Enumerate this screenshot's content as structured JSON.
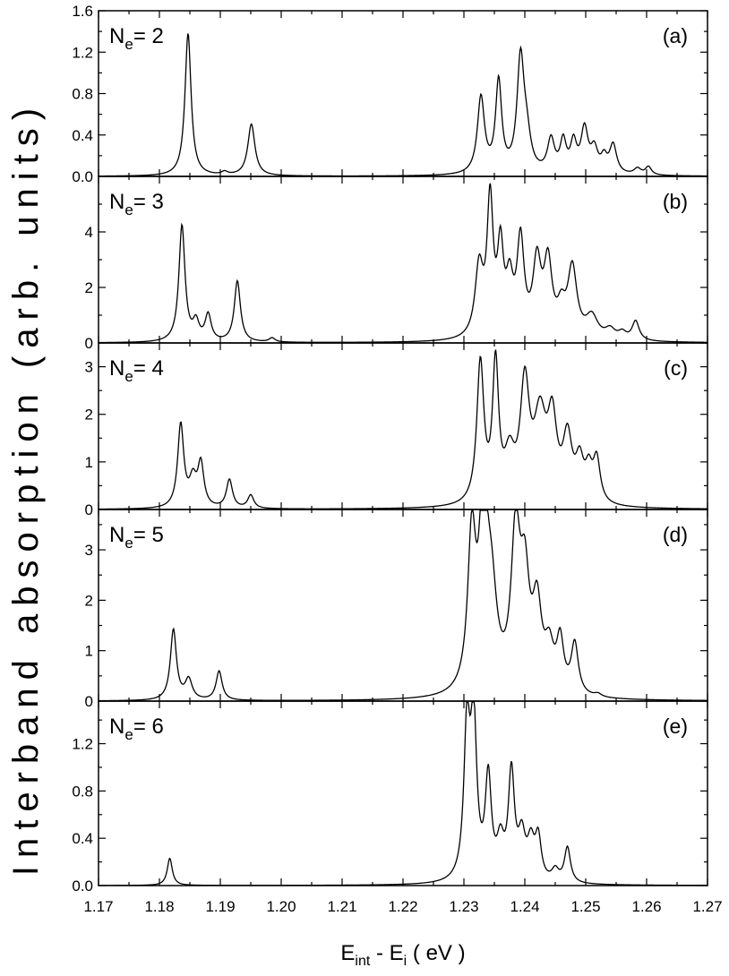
{
  "figure": {
    "ylabel": "Interband absorption (arb. units)",
    "xlabel": {
      "main": "E",
      "sub1": "int",
      "mid": " - E",
      "sub2": "i",
      "tail": " ( eV )"
    }
  },
  "chart_data": [
    {
      "type": "line",
      "panel_label": "(a)",
      "ne_prefix": "N",
      "ne_sub": "e",
      "ne_suffix": "= 2",
      "xlim": [
        1.17,
        1.27
      ],
      "ylim": [
        0,
        1.6
      ],
      "yticks": [
        0.0,
        0.4,
        0.8,
        1.2,
        1.6
      ],
      "ytick_labels": [
        "0.0",
        "0.4",
        "0.8",
        "1.2",
        "1.6"
      ],
      "peaks": [
        [
          1.1847,
          1.38,
          0.0006
        ],
        [
          1.1907,
          0.03,
          0.0006
        ],
        [
          1.1951,
          0.5,
          0.0007
        ],
        [
          1.2328,
          0.74,
          0.0007
        ],
        [
          1.2357,
          0.88,
          0.0006
        ],
        [
          1.2393,
          1.08,
          0.0007
        ],
        [
          1.2403,
          0.3,
          0.0008
        ],
        [
          1.2443,
          0.32,
          0.0007
        ],
        [
          1.2463,
          0.3,
          0.0006
        ],
        [
          1.248,
          0.28,
          0.0006
        ],
        [
          1.2498,
          0.42,
          0.0007
        ],
        [
          1.2514,
          0.22,
          0.0007
        ],
        [
          1.253,
          0.14,
          0.0006
        ],
        [
          1.2545,
          0.28,
          0.0007
        ],
        [
          1.2585,
          0.06,
          0.0007
        ],
        [
          1.2603,
          0.08,
          0.0006
        ]
      ]
    },
    {
      "type": "line",
      "panel_label": "(b)",
      "ne_prefix": "N",
      "ne_sub": "e",
      "ne_suffix": "= 3",
      "xlim": [
        1.17,
        1.27
      ],
      "ylim": [
        0,
        6
      ],
      "yticks": [
        0,
        2,
        4
      ],
      "ytick_labels": [
        "0",
        "2",
        "4"
      ],
      "peaks": [
        [
          1.1837,
          4.2,
          0.0006
        ],
        [
          1.186,
          0.65,
          0.0006
        ],
        [
          1.188,
          0.95,
          0.0006
        ],
        [
          1.1928,
          2.2,
          0.0006
        ],
        [
          1.1985,
          0.15,
          0.0006
        ],
        [
          1.2325,
          2.5,
          0.0008
        ],
        [
          1.2343,
          4.8,
          0.0006
        ],
        [
          1.236,
          3.0,
          0.0006
        ],
        [
          1.2375,
          1.8,
          0.0007
        ],
        [
          1.2393,
          3.4,
          0.0007
        ],
        [
          1.242,
          2.6,
          0.0008
        ],
        [
          1.2438,
          2.6,
          0.0008
        ],
        [
          1.2478,
          2.5,
          0.0009
        ],
        [
          1.246,
          0.9,
          0.0008
        ],
        [
          1.251,
          0.8,
          0.0012
        ],
        [
          1.254,
          0.35,
          0.001
        ],
        [
          1.256,
          0.25,
          0.0008
        ],
        [
          1.2582,
          0.7,
          0.0007
        ]
      ]
    },
    {
      "type": "line",
      "panel_label": "(c)",
      "ne_prefix": "N",
      "ne_sub": "e",
      "ne_suffix": "= 4",
      "xlim": [
        1.17,
        1.27
      ],
      "ylim": [
        0,
        3.5
      ],
      "yticks": [
        0,
        1,
        2,
        3
      ],
      "ytick_labels": [
        "0",
        "1",
        "2",
        "3"
      ],
      "peaks": [
        [
          1.1835,
          1.75,
          0.0006
        ],
        [
          1.1855,
          0.55,
          0.0007
        ],
        [
          1.1868,
          0.9,
          0.0006
        ],
        [
          1.1915,
          0.6,
          0.0006
        ],
        [
          1.195,
          0.28,
          0.0006
        ],
        [
          1.2327,
          2.95,
          0.0007
        ],
        [
          1.2352,
          2.85,
          0.0006
        ],
        [
          1.2375,
          0.9,
          0.001
        ],
        [
          1.24,
          2.4,
          0.0009
        ],
        [
          1.2425,
          1.7,
          0.0012
        ],
        [
          1.2445,
          1.6,
          0.0009
        ],
        [
          1.247,
          1.3,
          0.0009
        ],
        [
          1.249,
          0.8,
          0.0008
        ],
        [
          1.2505,
          0.6,
          0.0007
        ],
        [
          1.2518,
          0.9,
          0.0007
        ]
      ]
    },
    {
      "type": "line",
      "panel_label": "(d)",
      "ne_prefix": "N",
      "ne_sub": "e",
      "ne_suffix": "= 5",
      "xlim": [
        1.17,
        1.27
      ],
      "ylim": [
        0,
        3.8
      ],
      "yticks": [
        0,
        1,
        2,
        3
      ],
      "ytick_labels": [
        "0",
        "1",
        "2",
        "3"
      ],
      "peaks": [
        [
          1.1823,
          1.4,
          0.0006
        ],
        [
          1.1848,
          0.4,
          0.0007
        ],
        [
          1.1898,
          0.58,
          0.0006
        ],
        [
          1.2313,
          3.0,
          0.0008
        ],
        [
          1.2332,
          3.55,
          0.0008
        ],
        [
          1.2345,
          1.8,
          0.0011
        ],
        [
          1.2385,
          3.0,
          0.0009
        ],
        [
          1.24,
          2.0,
          0.0009
        ],
        [
          1.242,
          1.6,
          0.0009
        ],
        [
          1.244,
          0.8,
          0.0009
        ],
        [
          1.2458,
          1.0,
          0.0007
        ],
        [
          1.2482,
          1.0,
          0.0007
        ],
        [
          1.252,
          0.06,
          0.0007
        ]
      ]
    },
    {
      "type": "line",
      "panel_label": "(e)",
      "ne_prefix": "N",
      "ne_sub": "e",
      "ne_suffix": "= 6",
      "xlim": [
        1.17,
        1.27
      ],
      "ylim": [
        0,
        1.56
      ],
      "yticks": [
        0.0,
        0.4,
        0.8,
        1.2
      ],
      "ytick_labels": [
        "0.0",
        "0.4",
        "0.8",
        "1.2"
      ],
      "xticks": [
        1.17,
        1.18,
        1.19,
        1.2,
        1.21,
        1.22,
        1.23,
        1.24,
        1.25,
        1.26,
        1.27
      ],
      "xtick_labels": [
        "1.17",
        "1.18",
        "1.19",
        "1.20",
        "1.21",
        "1.22",
        "1.23",
        "1.24",
        "1.25",
        "1.26",
        "1.27"
      ],
      "peaks": [
        [
          1.1817,
          0.23,
          0.0005
        ],
        [
          1.2305,
          1.25,
          0.0006
        ],
        [
          1.2316,
          1.3,
          0.0006
        ],
        [
          1.234,
          0.85,
          0.0006
        ],
        [
          1.236,
          0.3,
          0.0007
        ],
        [
          1.2378,
          0.9,
          0.0006
        ],
        [
          1.2395,
          0.35,
          0.0007
        ],
        [
          1.241,
          0.3,
          0.0007
        ],
        [
          1.2422,
          0.35,
          0.0006
        ],
        [
          1.245,
          0.1,
          0.0007
        ],
        [
          1.247,
          0.3,
          0.0006
        ]
      ]
    }
  ]
}
